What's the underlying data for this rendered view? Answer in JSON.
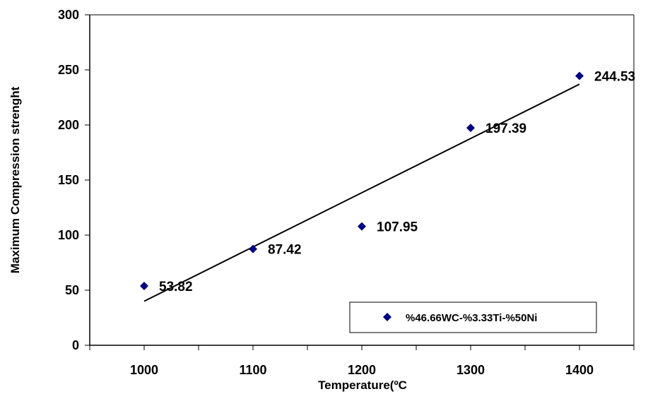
{
  "chart_data": {
    "type": "scatter",
    "xlabel": "Temperature(ºC",
    "ylabel": "Maximum Compression strenght",
    "xlim": [
      950,
      1450
    ],
    "ylim": [
      0,
      300
    ],
    "x_ticks": [
      1000,
      1100,
      1200,
      1300,
      1400
    ],
    "y_ticks": [
      0,
      50,
      100,
      150,
      200,
      250,
      300
    ],
    "grid": false,
    "legend_position": "bottom-right",
    "series": [
      {
        "name": "%46.66WC-%3.33Ti-%50Ni",
        "color": "#000080",
        "marker": "diamond",
        "x": [
          1000,
          1100,
          1200,
          1300,
          1400
        ],
        "y": [
          53.82,
          87.42,
          107.95,
          197.39,
          244.53
        ],
        "data_labels": [
          "53.82",
          "87.42",
          "107.95",
          "197.39",
          "244.53"
        ]
      }
    ],
    "trendline": {
      "type": "linear",
      "color": "#000000",
      "x": [
        1000,
        1400
      ],
      "y": [
        40,
        237
      ]
    }
  }
}
